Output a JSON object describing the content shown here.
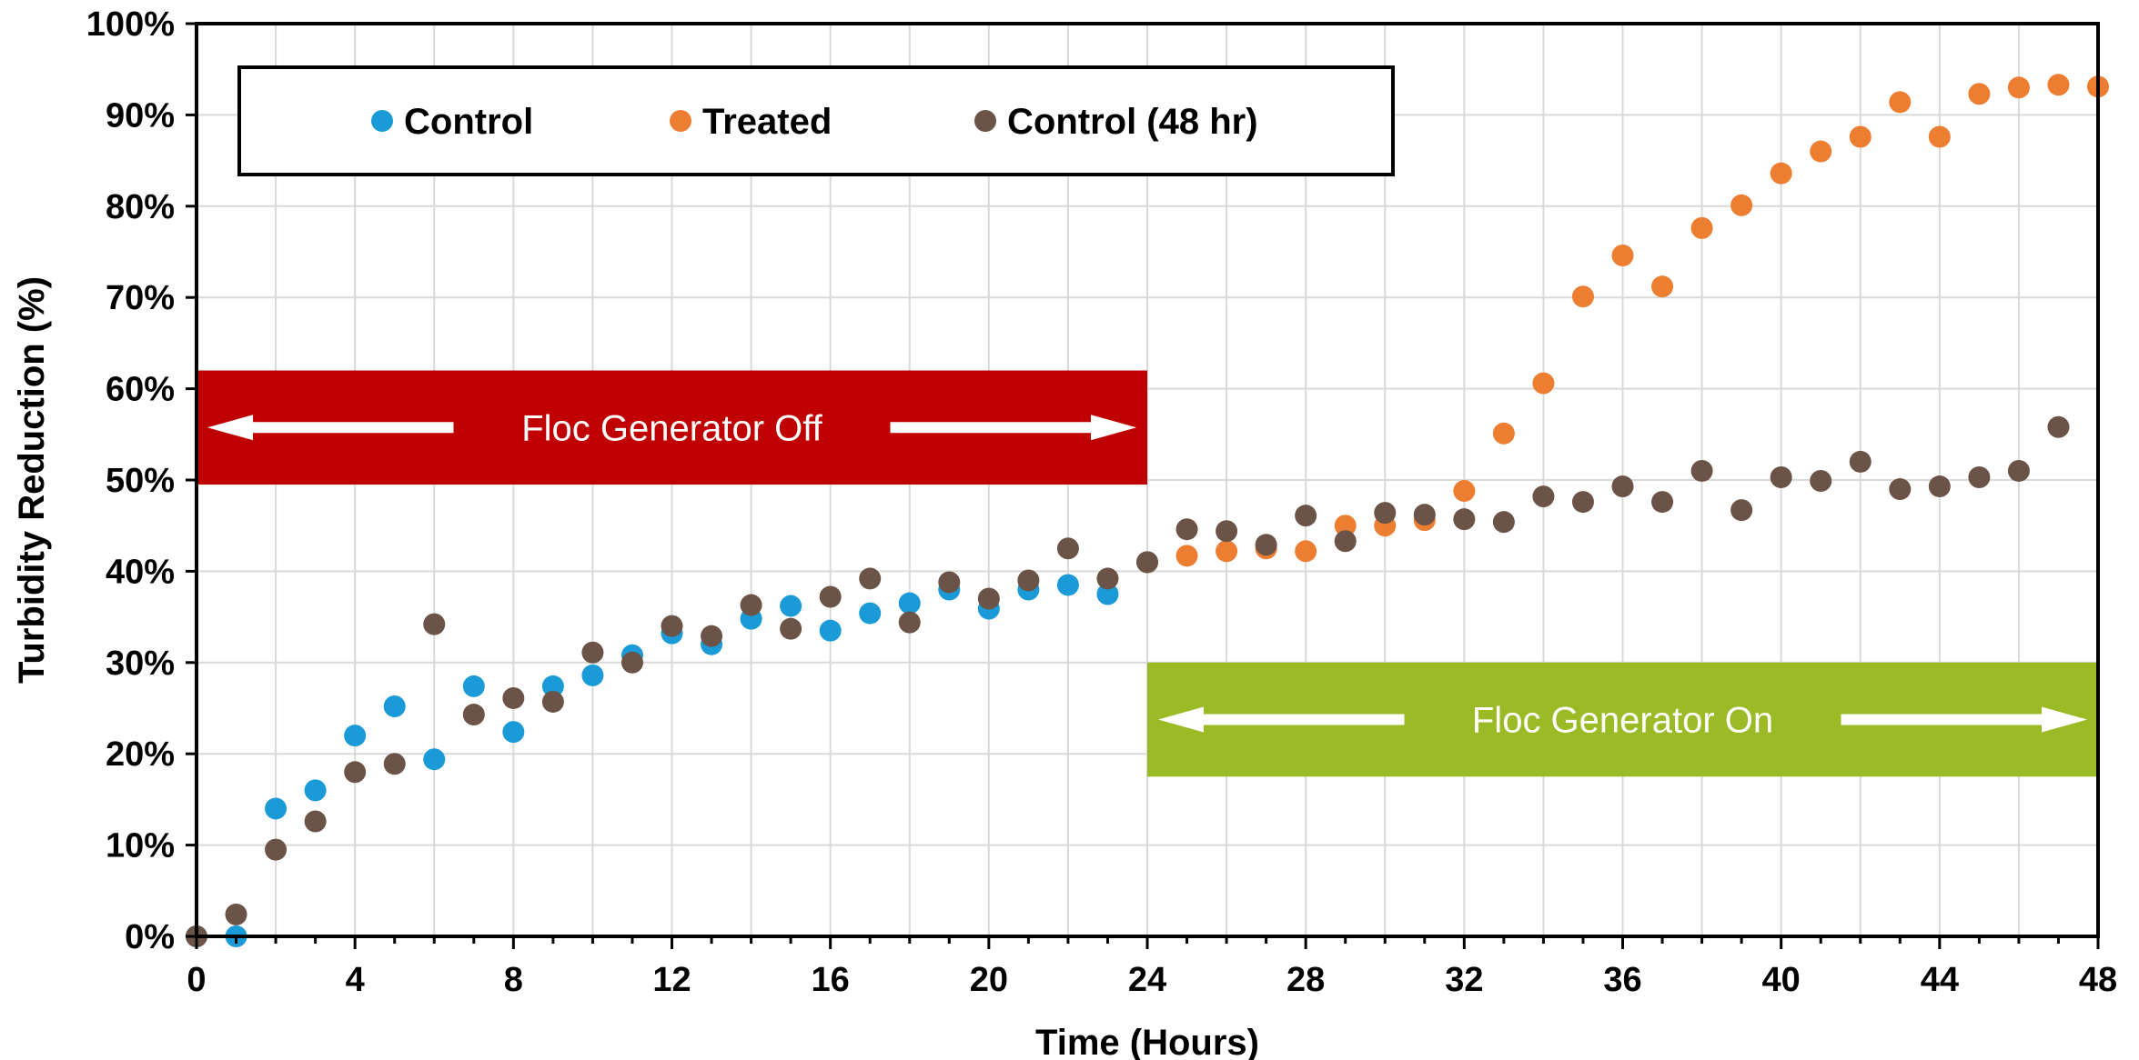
{
  "colors": {
    "control": "#1a9ad6",
    "treated": "#ed7d31",
    "control48": "#6b5447",
    "band_off": "#c00000",
    "band_on": "#9abb25",
    "grid": "#d9d9d9",
    "axis": "#000000"
  },
  "chart_data": {
    "type": "scatter",
    "xlabel": "Time (Hours)",
    "ylabel": "Turbidity Reduction (%)",
    "xlim": [
      0,
      48
    ],
    "ylim": [
      0,
      100
    ],
    "x_ticks": [
      0,
      4,
      8,
      12,
      16,
      20,
      24,
      28,
      32,
      36,
      40,
      44,
      48
    ],
    "y_ticks": [
      0,
      10,
      20,
      30,
      40,
      50,
      60,
      70,
      80,
      90,
      100
    ],
    "y_tick_labels": [
      "0%",
      "10%",
      "20%",
      "30%",
      "40%",
      "50%",
      "60%",
      "70%",
      "80%",
      "90%",
      "100%"
    ],
    "grid": true,
    "legend_position": "top-left",
    "series": [
      {
        "name": "Control",
        "color_key": "control",
        "points": [
          [
            0,
            0
          ],
          [
            1,
            0
          ],
          [
            2,
            14
          ],
          [
            3,
            16
          ],
          [
            4,
            22
          ],
          [
            5,
            25.2
          ],
          [
            6,
            19.4
          ],
          [
            7,
            27.4
          ],
          [
            8,
            22.4
          ],
          [
            9,
            27.4
          ],
          [
            10,
            28.6
          ],
          [
            11,
            30.8
          ],
          [
            12,
            33.2
          ],
          [
            13,
            32
          ],
          [
            14,
            34.8
          ],
          [
            15,
            36.2
          ],
          [
            16,
            33.5
          ],
          [
            17,
            35.4
          ],
          [
            18,
            36.5
          ],
          [
            19,
            38
          ],
          [
            20,
            35.9
          ],
          [
            21,
            38
          ],
          [
            22,
            38.5
          ],
          [
            23,
            37.5
          ],
          [
            24,
            41
          ]
        ]
      },
      {
        "name": "Treated",
        "color_key": "treated",
        "points": [
          [
            24,
            41
          ],
          [
            25,
            41.7
          ],
          [
            26,
            42.2
          ],
          [
            27,
            42.5
          ],
          [
            28,
            42.2
          ],
          [
            29,
            45
          ],
          [
            30,
            45
          ],
          [
            31,
            45.6
          ],
          [
            32,
            48.8
          ],
          [
            33,
            55.1
          ],
          [
            34,
            60.6
          ],
          [
            35,
            70.1
          ],
          [
            36,
            74.6
          ],
          [
            37,
            71.2
          ],
          [
            38,
            77.6
          ],
          [
            39,
            80.1
          ],
          [
            40,
            83.6
          ],
          [
            41,
            86
          ],
          [
            42,
            87.6
          ],
          [
            43,
            91.4
          ],
          [
            44,
            87.6
          ],
          [
            45,
            92.3
          ],
          [
            46,
            93
          ],
          [
            47,
            93.3
          ],
          [
            48,
            93.1
          ]
        ]
      },
      {
        "name": "Control (48 hr)",
        "color_key": "control48",
        "points": [
          [
            0,
            0
          ],
          [
            1,
            2.4
          ],
          [
            2,
            9.5
          ],
          [
            3,
            12.6
          ],
          [
            4,
            18
          ],
          [
            5,
            18.9
          ],
          [
            6,
            34.2
          ],
          [
            7,
            24.3
          ],
          [
            8,
            26.1
          ],
          [
            9,
            25.7
          ],
          [
            10,
            31.1
          ],
          [
            11,
            30
          ],
          [
            12,
            34
          ],
          [
            13,
            32.9
          ],
          [
            14,
            36.3
          ],
          [
            15,
            33.7
          ],
          [
            16,
            37.2
          ],
          [
            17,
            39.2
          ],
          [
            18,
            34.4
          ],
          [
            19,
            38.8
          ],
          [
            20,
            37
          ],
          [
            21,
            39
          ],
          [
            22,
            42.5
          ],
          [
            23,
            39.2
          ],
          [
            24,
            41
          ],
          [
            25,
            44.6
          ],
          [
            26,
            44.4
          ],
          [
            27,
            42.9
          ],
          [
            28,
            46.1
          ],
          [
            29,
            43.3
          ],
          [
            30,
            46.4
          ],
          [
            31,
            46.2
          ],
          [
            32,
            45.7
          ],
          [
            33,
            45.4
          ],
          [
            34,
            48.2
          ],
          [
            35,
            47.6
          ],
          [
            36,
            49.3
          ],
          [
            37,
            47.6
          ],
          [
            38,
            51
          ],
          [
            39,
            46.7
          ],
          [
            40,
            50.3
          ],
          [
            41,
            49.9
          ],
          [
            42,
            52
          ],
          [
            43,
            49
          ],
          [
            44,
            49.3
          ],
          [
            45,
            50.3
          ],
          [
            46,
            51
          ],
          [
            47,
            55.8
          ]
        ]
      }
    ],
    "annotations": [
      {
        "text": "Floc Generator Off",
        "x_range": [
          0,
          24
        ],
        "y_range": [
          49.5,
          62
        ],
        "color_key": "band_off"
      },
      {
        "text": "Floc Generator On",
        "x_range": [
          24,
          48
        ],
        "y_range": [
          17.5,
          30
        ],
        "color_key": "band_on"
      }
    ]
  }
}
